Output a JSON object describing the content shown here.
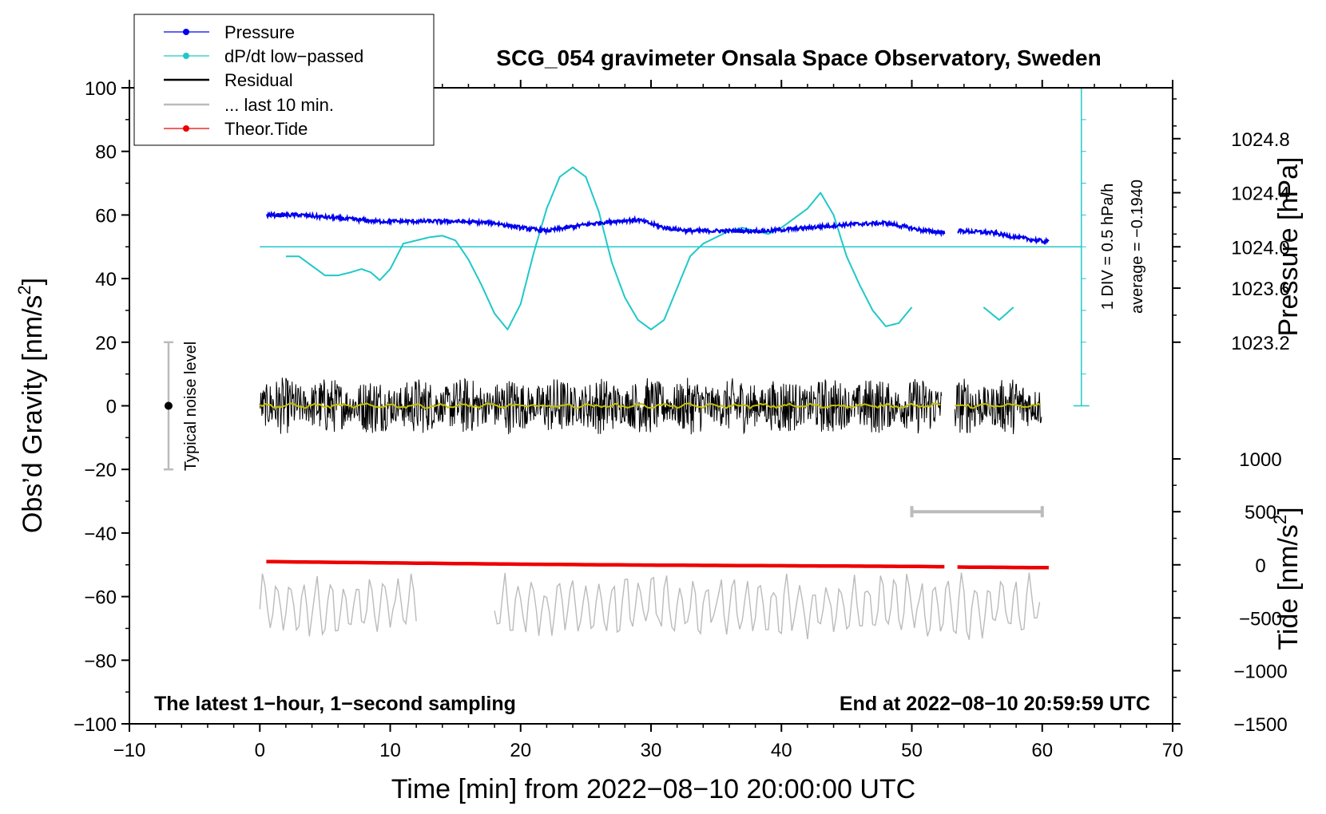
{
  "chart_data": {
    "type": "line",
    "title": "SCG_054 gravimeter Onsala Space Observatory, Sweden",
    "xlabel": "Time [min] from 2022−08−10 20:00:00 UTC",
    "ylabel": "Obs’d Gravity [nm/s",
    "ylabel_sup": "2",
    "ylabel_tail": "]",
    "y2label": "Pressure [hPa]",
    "y3label": "Tide [nm/s",
    "y3label_sup": "2",
    "y3label_tail": "]",
    "xlim": [
      -10,
      70
    ],
    "ylim": [
      -100,
      100
    ],
    "x_ticks": [
      -10,
      0,
      10,
      20,
      30,
      40,
      50,
      60,
      70
    ],
    "x_tick_labels": [
      "−10",
      "0",
      "10",
      "20",
      "30",
      "40",
      "50",
      "60",
      "70"
    ],
    "y_ticks": [
      -100,
      -80,
      -60,
      -40,
      -20,
      0,
      20,
      40,
      60,
      80,
      100
    ],
    "y_tick_labels": [
      "−100",
      "−80",
      "−60",
      "−40",
      "−20",
      "0",
      "20",
      "40",
      "60",
      "80",
      "100"
    ],
    "pressure_axis": {
      "ticks": [
        1023.2,
        1023.6,
        1024.0,
        1024.4,
        1024.8
      ],
      "tick_labels": [
        "1023.2",
        "1023.6",
        "1024.0",
        "1024.4",
        "1024.8"
      ],
      "gravity_equivalent": [
        20,
        37,
        50,
        67,
        84
      ]
    },
    "tide_axis": {
      "ticks": [
        -1500,
        -1000,
        -500,
        0,
        500,
        1000
      ],
      "tick_labels": [
        "−1500",
        "−1000",
        "−500",
        "0",
        "500",
        "1000"
      ],
      "gravity_equivalent": [
        -100,
        -83.3,
        -66.7,
        -50,
        -33.3,
        -16.7
      ]
    },
    "legend": [
      {
        "label": "Pressure",
        "color": "#0000ee",
        "marker": true
      },
      {
        "label": "dP/dt low−passed",
        "color": "#20c8c8",
        "marker": true
      },
      {
        "label": "Residual",
        "color": "#000000",
        "marker": false
      },
      {
        "label": "... last 10 min.",
        "color": "#bbbbbb",
        "marker": false
      },
      {
        "label": "Theor.Tide",
        "color": "#ee0000",
        "marker": true
      }
    ],
    "series": [
      {
        "name": "Pressure",
        "color": "#0000ee",
        "unit": "hPa",
        "x": [
          0.5,
          3,
          6,
          9,
          12,
          15,
          18,
          20,
          22,
          25,
          27,
          29,
          31,
          33,
          36,
          39,
          42,
          45,
          48,
          51,
          52.5,
          53.5,
          56,
          58,
          60.5
        ],
        "y": [
          60,
          60,
          59,
          58,
          58,
          58,
          57.5,
          56,
          55,
          57,
          58,
          58.5,
          56,
          55,
          55,
          55,
          56,
          57,
          57.5,
          55,
          54.5,
          55,
          54.5,
          53,
          51.5
        ]
      },
      {
        "name": "dP/dt low−passed",
        "color": "#20c8c8",
        "unit": "hPa/h",
        "x": [
          2,
          3,
          4,
          5,
          6,
          7,
          7.8,
          8.5,
          9.2,
          10,
          11,
          12,
          13,
          14,
          15,
          16,
          17,
          18,
          19,
          20,
          21,
          22,
          23,
          24,
          25,
          26,
          27,
          28,
          29,
          30,
          31,
          32,
          33,
          34,
          35,
          36,
          37,
          38,
          39,
          40,
          41,
          42,
          43,
          44,
          45,
          46,
          47,
          48,
          49,
          50
        ],
        "y": [
          47,
          47,
          44,
          41,
          41,
          42,
          43,
          42,
          39.5,
          43,
          51,
          52,
          53,
          53.5,
          52,
          46,
          38,
          29,
          24,
          32,
          48,
          62,
          72,
          75,
          72,
          61,
          45,
          34,
          27,
          24,
          27,
          37,
          47,
          51,
          53,
          55,
          56,
          55,
          54,
          56,
          59,
          62,
          67,
          60,
          47,
          38,
          30,
          25,
          26,
          31
        ]
      },
      {
        "name": "dP/dt low−passed (after gap)",
        "color": "#20c8c8",
        "unit": "hPa/h",
        "x": [
          55.5,
          56.7,
          57.8
        ],
        "y": [
          31,
          27,
          31
        ]
      },
      {
        "name": "Residual",
        "color": "#000000",
        "x_range": [
          0,
          60
        ],
        "gap": [
          52.3,
          53.3
        ],
        "amplitude": [
          -18,
          14
        ]
      },
      {
        "name": "Residual smoothed",
        "color": "#c8c000",
        "x_range": [
          0,
          60
        ],
        "y_approx": 0
      },
      {
        "name": "... last 10 min.",
        "color": "#bbbbbb",
        "segments": [
          [
            0,
            12
          ],
          [
            18,
            60
          ]
        ],
        "y_range": [
          -75,
          -52
        ]
      },
      {
        "name": "Theor.Tide",
        "color": "#ee0000",
        "unit": "nm/s²",
        "x": [
          0.5,
          10,
          20,
          30,
          40,
          50,
          52.5,
          53.5,
          60.5
        ],
        "y": [
          -49,
          -49.4,
          -49.8,
          -50.1,
          -50.3,
          -50.5,
          -50.6,
          -50.7,
          -50.9
        ]
      }
    ],
    "pressure_scale_bar": {
      "label": "1 DIV = 0.5 hPa/h",
      "average_label": "average = −0.1940",
      "range": [
        0,
        100
      ]
    },
    "noise_bar": {
      "label": "Typical noise level",
      "x": -7,
      "y_range": [
        -20,
        20
      ]
    },
    "last10_bar": {
      "x_range": [
        50,
        60
      ],
      "y": -33.3
    }
  },
  "annotations": {
    "bottom_left": "The latest 1−hour, 1−second sampling",
    "bottom_right": "End at 2022−08−10 20:59:59 UTC"
  }
}
